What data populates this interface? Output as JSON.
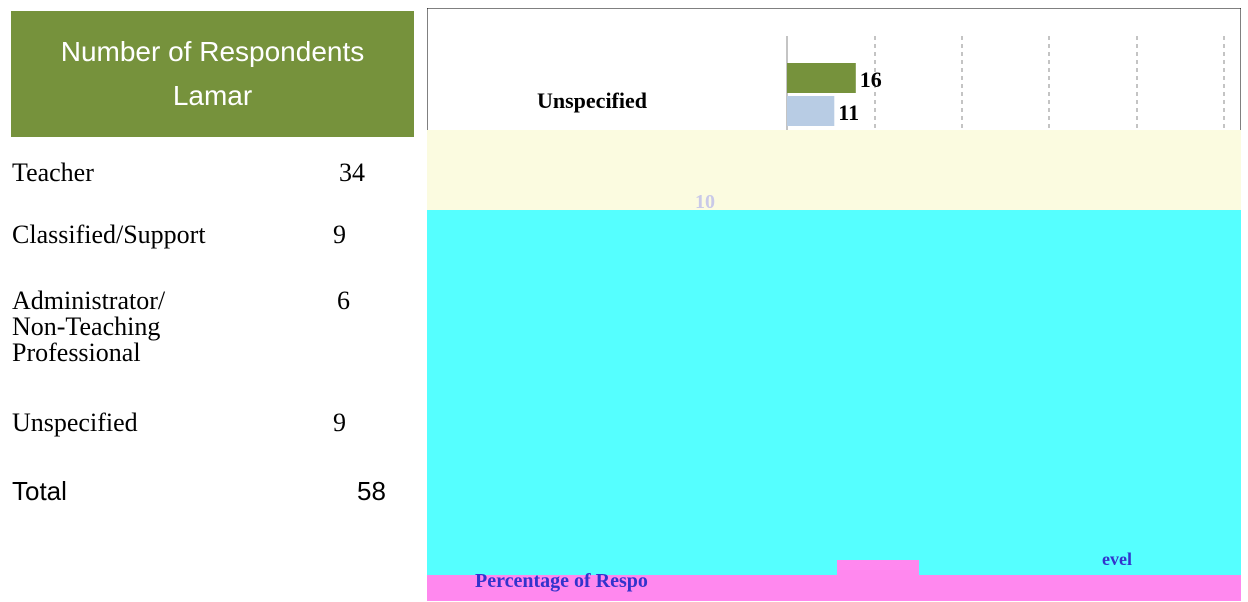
{
  "table": {
    "header_line1": "Number of Respondents",
    "header_line2": "Lamar",
    "rows": [
      {
        "label": "Teacher",
        "value": "34"
      },
      {
        "label": "Classified/Support",
        "value": "9"
      },
      {
        "label": "Administrator/ Non-Teaching Professional",
        "value": "6"
      },
      {
        "label": "Unspecified",
        "value": "9"
      }
    ],
    "total_label": "Total",
    "total_value": "58"
  },
  "colors": {
    "header_bg": "#76923c",
    "bar_series_1": "#76923c",
    "bar_series_2": "#b8cce4",
    "chart_bg_band": "#55ffff",
    "chart_light_band": "#fbfbe0",
    "chart_pink_band": "#ff88ee"
  },
  "chart_data": {
    "type": "bar",
    "orientation": "horizontal",
    "categories": [
      "Unspecified"
    ],
    "series": [
      {
        "values": [
          16
        ]
      },
      {
        "values": [
          11
        ]
      }
    ],
    "data_labels": [
      "16",
      "11",
      "10"
    ],
    "partial_text": [
      "Percentage of Respo",
      "evel"
    ]
  }
}
